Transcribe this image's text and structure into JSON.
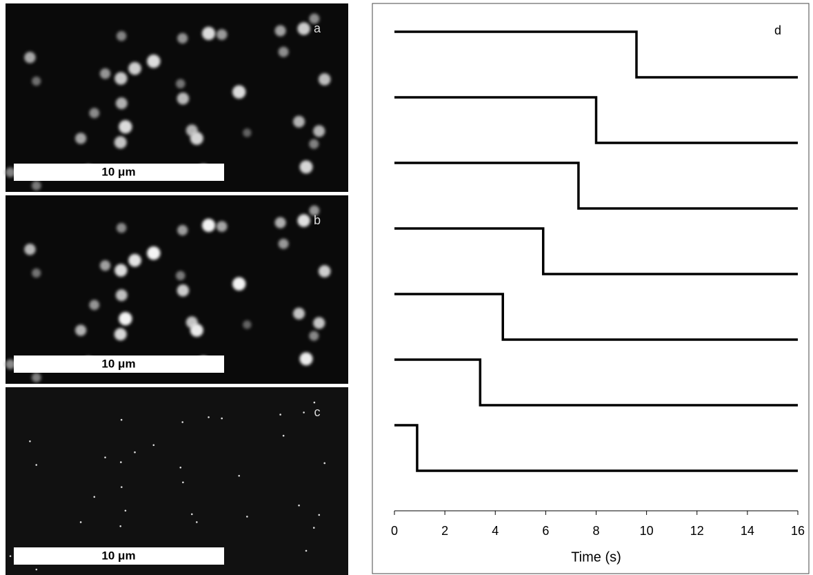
{
  "panels": [
    {
      "label": "a",
      "scale_bar": "10 μm"
    },
    {
      "label": "b",
      "scale_bar": "10 μm"
    },
    {
      "label": "c",
      "scale_bar": "10 μm"
    }
  ],
  "chart_data": {
    "type": "step",
    "label": "d",
    "xlabel": "Time (s)",
    "xlim": [
      0,
      16
    ],
    "xticks": [
      0,
      2,
      4,
      6,
      8,
      10,
      12,
      14,
      16
    ],
    "color": "#000000",
    "series": [
      {
        "step_time": 9.6
      },
      {
        "step_time": 8.0
      },
      {
        "step_time": 7.3
      },
      {
        "step_time": 5.9
      },
      {
        "step_time": 4.3
      },
      {
        "step_time": 3.4
      },
      {
        "step_time": 0.9
      }
    ]
  }
}
